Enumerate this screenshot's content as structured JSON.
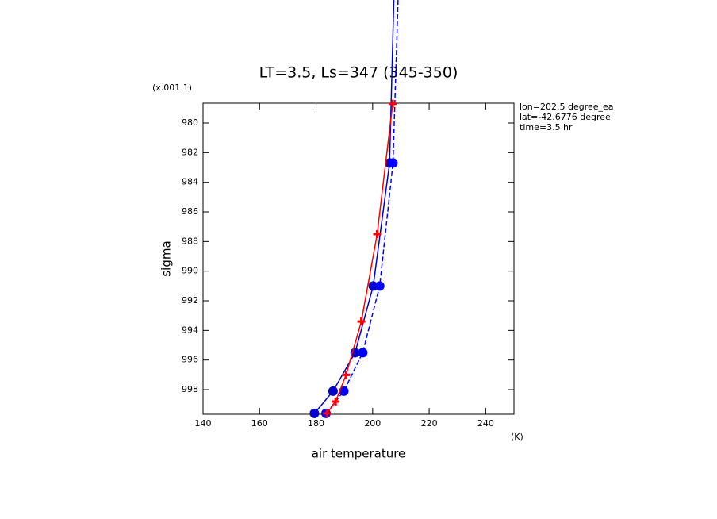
{
  "chart_data": {
    "type": "line",
    "title": "LT=3.5, Ls=347 (345-350)",
    "x_label": "air temperature",
    "x_units": "(K)",
    "y_label": "sigma",
    "y_units": "(x.001 1)",
    "annotations": [
      "lon=202.5 degree_ea",
      "lat=-42.6776 degree",
      "time=3.5 hr"
    ],
    "xlim": [
      140,
      250
    ],
    "xticks": [
      140,
      160,
      180,
      200,
      220,
      240
    ],
    "ylim": [
      978.66,
      999.66
    ],
    "yticks": [
      980,
      982,
      984,
      986,
      988,
      990,
      992,
      994,
      996,
      998
    ],
    "y_inverted": true,
    "series": [
      {
        "color": "#0000cc",
        "dash": false,
        "marker": "circle",
        "x": [
          207.5,
          206.0,
          200.2,
          193.8,
          186.0,
          179.4
        ],
        "y": [
          971.7,
          982.7,
          991.0,
          995.5,
          998.1,
          999.6
        ]
      },
      {
        "color": "#0000ff",
        "dash": true,
        "marker": "circle",
        "x": [
          209.0,
          207.2,
          202.5,
          196.5,
          189.8,
          183.5
        ],
        "y": [
          971.7,
          982.7,
          991.0,
          995.5,
          998.1,
          999.6
        ]
      },
      {
        "color": "#ff0000",
        "dash": false,
        "marker": "plus",
        "x": [
          207.1,
          201.6,
          196.0,
          190.6,
          186.9,
          183.8
        ],
        "y": [
          978.7,
          987.5,
          993.4,
          997.0,
          998.8,
          999.6
        ]
      }
    ]
  }
}
